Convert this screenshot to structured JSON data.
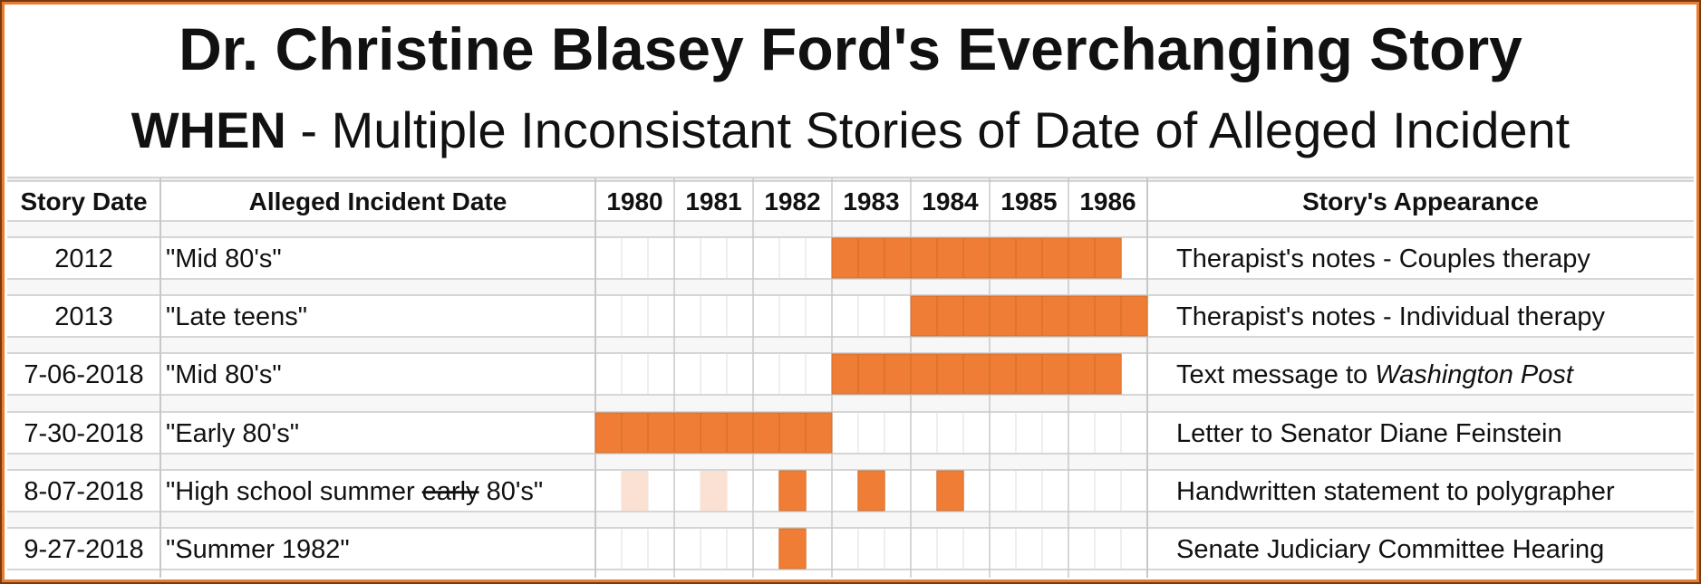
{
  "title": "Dr. Christine Blasey Ford's Everchanging Story",
  "subtitle": {
    "bold": "WHEN",
    "rest": " - Multiple Inconsistant Stories of Date of Alleged Incident"
  },
  "colors": {
    "border": "#e97d33",
    "bar": "#ef7d35",
    "bar_light": "#fbe0d4",
    "grid": "#c8c8c8"
  },
  "chart_data": {
    "type": "table",
    "headers": {
      "story_date": "Story Date",
      "incident_date": "Alleged Incident Date",
      "appearance": "Story's Appearance"
    },
    "years": [
      "1980",
      "1981",
      "1982",
      "1983",
      "1984",
      "1985",
      "1986"
    ],
    "subdivisions_per_year": 3,
    "rows": [
      {
        "story_date": "2012",
        "incident_date": "\"Mid 80's\"",
        "appearance": "Therapist's notes - Couples therapy",
        "segments": [
          {
            "start": 1983.0,
            "end": 1986.67,
            "style": "solid"
          }
        ]
      },
      {
        "story_date": "2013",
        "incident_date": "\"Late teens\"",
        "appearance": "Therapist's notes - Individual therapy",
        "segments": [
          {
            "start": 1984.0,
            "end": 1987.0,
            "style": "solid"
          }
        ]
      },
      {
        "story_date": "7-06-2018",
        "incident_date": "\"Mid 80's\"",
        "appearance_prefix": "Text message to ",
        "appearance_italic": "Washington Post",
        "segments": [
          {
            "start": 1983.0,
            "end": 1986.67,
            "style": "solid"
          }
        ]
      },
      {
        "story_date": "7-30-2018",
        "incident_date": "\"Early 80's\"",
        "appearance": "Letter to Senator Diane Feinstein",
        "segments": [
          {
            "start": 1980.0,
            "end": 1983.0,
            "style": "solid"
          }
        ]
      },
      {
        "story_date": "8-07-2018",
        "incident_date_prefix": "\"High school summer ",
        "incident_date_struck": "early",
        "incident_date_suffix": " 80's\"",
        "appearance": "Handwritten statement to polygrapher",
        "segments": [
          {
            "start": 1980.33,
            "end": 1980.67,
            "style": "light"
          },
          {
            "start": 1981.33,
            "end": 1981.67,
            "style": "light"
          },
          {
            "start": 1982.33,
            "end": 1982.67,
            "style": "solid"
          },
          {
            "start": 1983.33,
            "end": 1983.67,
            "style": "solid"
          },
          {
            "start": 1984.33,
            "end": 1984.67,
            "style": "solid"
          }
        ]
      },
      {
        "story_date": "9-27-2018",
        "incident_date": "\"Summer 1982\"",
        "appearance": "Senate Judiciary Committee Hearing",
        "segments": [
          {
            "start": 1982.33,
            "end": 1982.67,
            "style": "solid"
          }
        ]
      }
    ]
  }
}
